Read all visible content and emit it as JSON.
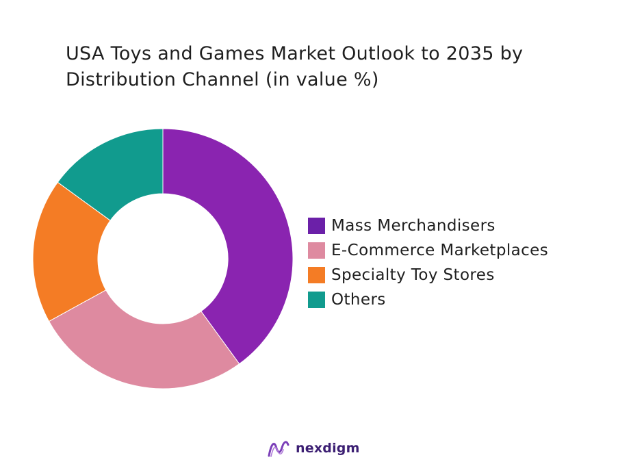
{
  "chart_data": {
    "type": "pie",
    "title": "USA Toys and Games Market Outlook to 2035 by Distribution Channel (in value %)",
    "title_lines": [
      "USA Toys and Games Market Outlook to 2035 by",
      "Distribution Channel (in value %)"
    ],
    "donut": true,
    "categories": [
      "Mass Merchandisers",
      "E-Commerce Marketplaces",
      "Specialty Toy Stores",
      "Others"
    ],
    "values": [
      40,
      27,
      18,
      15
    ],
    "colors": [
      "#8a24b0",
      "#de8aa0",
      "#f47c25",
      "#119b8e"
    ],
    "legend_colors": [
      "#6b20a8",
      "#de8aa0",
      "#f47c25",
      "#119b8e"
    ],
    "legend_position": "right"
  },
  "brand": {
    "name": "nexdigm"
  }
}
